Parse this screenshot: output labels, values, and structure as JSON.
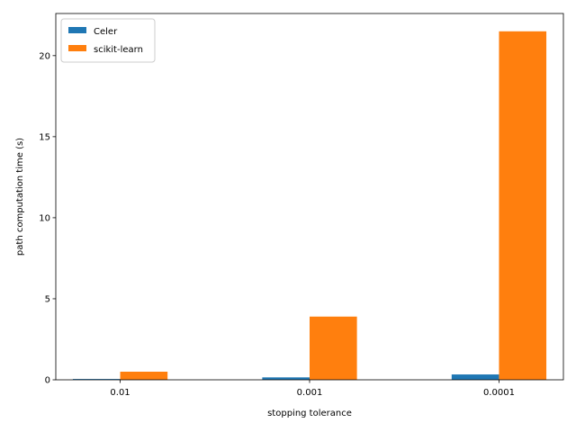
{
  "chart_data": {
    "type": "bar",
    "categories": [
      "0.01",
      "0.001",
      "0.0001"
    ],
    "series": [
      {
        "name": "Celer",
        "values": [
          0.05,
          0.15,
          0.33
        ],
        "color": "#1f77b4"
      },
      {
        "name": "scikit-learn",
        "values": [
          0.5,
          3.9,
          21.5
        ],
        "color": "#ff7f0e"
      }
    ],
    "xlabel": "stopping tolerance",
    "ylabel": "path computation time (s)",
    "ylim": [
      0,
      22.6
    ],
    "yticks": [
      0,
      5,
      10,
      15,
      20
    ],
    "grid": false,
    "legend_position": "upper-left"
  }
}
